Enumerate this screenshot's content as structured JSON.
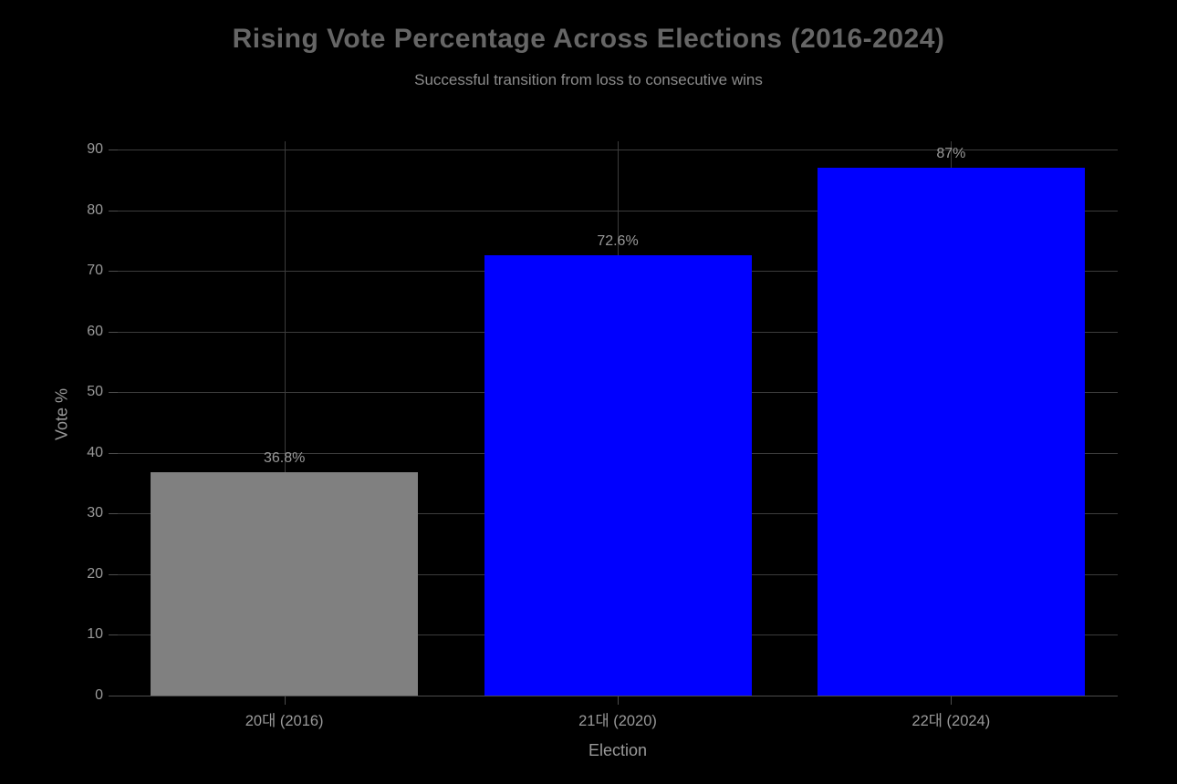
{
  "chart_data": {
    "type": "bar",
    "title": "Rising Vote Percentage Across Elections (2016-2024)",
    "subtitle": "Successful transition from loss to consecutive wins",
    "xlabel": "Election",
    "ylabel": "Vote %",
    "categories": [
      "20대 (2016)",
      "21대 (2020)",
      "22대 (2024)"
    ],
    "values": [
      36.8,
      72.6,
      87
    ],
    "value_labels": [
      "36.8%",
      "72.6%",
      "87%"
    ],
    "bar_colors": [
      "#808080",
      "#0000ff",
      "#0000ff"
    ],
    "y_ticks": [
      0,
      10,
      20,
      30,
      40,
      50,
      60,
      70,
      80,
      90
    ],
    "ylim": [
      0,
      91.4
    ],
    "grid": true,
    "legend_position": "none"
  },
  "colors": {
    "background": "#000000",
    "title": "#666666",
    "subtitle": "#8c8c8c",
    "tick_label": "#999999",
    "gridline": "#3c3c3c",
    "axis": "#4d4d4d"
  }
}
